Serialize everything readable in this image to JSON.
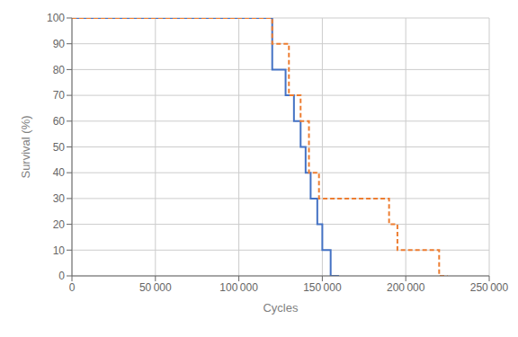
{
  "chart_data": {
    "type": "line",
    "xlabel": "Cycles",
    "ylabel": "Survival (%)",
    "xlim": [
      0,
      250000
    ],
    "ylim": [
      0,
      100
    ],
    "xticks": [
      0,
      {
        "value": 50000,
        "label": "50 000"
      },
      {
        "value": 100000,
        "label": "100 000"
      },
      {
        "value": 150000,
        "label": "150 000"
      },
      {
        "value": 200000,
        "label": "200 000"
      },
      {
        "value": 250000,
        "label": "250 000"
      }
    ],
    "yticks": [
      0,
      10,
      20,
      30,
      40,
      50,
      60,
      70,
      80,
      90,
      100
    ],
    "grid": true,
    "series": [
      {
        "color": "#4472C4",
        "line_style": "solid",
        "x": [
          0,
          120000,
          120000,
          128000,
          128000,
          133000,
          133000,
          137000,
          137000,
          140000,
          140000,
          143000,
          143000,
          147000,
          147000,
          150000,
          150000,
          155000,
          155000,
          160000
        ],
        "values": [
          100,
          100,
          80,
          80,
          70,
          70,
          60,
          60,
          50,
          50,
          40,
          40,
          30,
          30,
          20,
          20,
          10,
          10,
          0,
          0
        ]
      },
      {
        "color": "#ED7D31",
        "line_style": "dashed",
        "x": [
          0,
          120000,
          120000,
          130000,
          130000,
          137000,
          137000,
          142000,
          142000,
          148000,
          148000,
          155000,
          155000,
          165000,
          165000,
          190000,
          190000,
          195000,
          195000,
          220000,
          220000,
          225000
        ],
        "values": [
          100,
          100,
          90,
          90,
          70,
          70,
          60,
          60,
          40,
          40,
          30,
          30,
          30,
          30,
          30,
          30,
          20,
          20,
          10,
          10,
          0,
          0
        ]
      }
    ]
  }
}
